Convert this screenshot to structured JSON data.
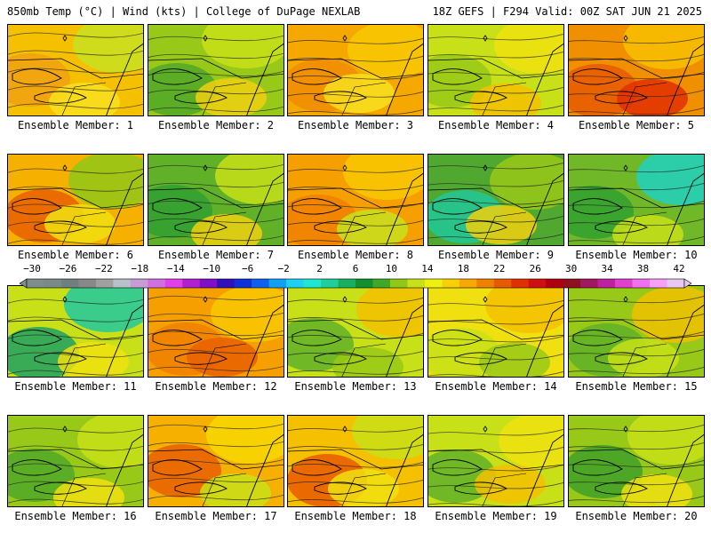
{
  "header": {
    "left": "850mb Temp (°C) | Wind (kts) | College of DuPage NEXLAB",
    "right": "18Z GEFS | F294 Valid: 00Z SAT JUN 21 2025"
  },
  "legend": {
    "labels": [
      "-30",
      "-26",
      "-22",
      "-18",
      "-14",
      "-10",
      "-6",
      "-2",
      "2",
      "6",
      "10",
      "14",
      "18",
      "22",
      "26",
      "30",
      "34",
      "38",
      "42"
    ],
    "colors": [
      "#7d8d89",
      "#7a8a86",
      "#708080",
      "#888888",
      "#a0a0a0",
      "#b8c0c8",
      "#c89ad8",
      "#d070e0",
      "#e040e8",
      "#b020d0",
      "#8010c8",
      "#3010b8",
      "#1030d8",
      "#1060f0",
      "#10a0f8",
      "#20d0f0",
      "#20e8d0",
      "#20d098",
      "#18b060",
      "#129030",
      "#40a828",
      "#90c818",
      "#c8e018",
      "#f0f010",
      "#f8d008",
      "#f8a800",
      "#f08000",
      "#e85a00",
      "#e03000",
      "#d01010",
      "#b00010",
      "#901020",
      "#a01860",
      "#c020a0",
      "#e040d0",
      "#f070f0",
      "#f8a0f8",
      "#e8c8f0"
    ]
  },
  "panels": [
    {
      "label": "Ensemble Member: 1",
      "base": "#f5c000",
      "blobs": [
        "#f0a010",
        "#c8e020",
        "#f8e020"
      ]
    },
    {
      "label": "Ensemble Member: 2",
      "base": "#98c818",
      "blobs": [
        "#50a828",
        "#c8e018",
        "#f0d010"
      ]
    },
    {
      "label": "Ensemble Member: 3",
      "base": "#f5a800",
      "blobs": [
        "#f08c00",
        "#f8c800",
        "#f8e020"
      ]
    },
    {
      "label": "Ensemble Member: 4",
      "base": "#c8e018",
      "blobs": [
        "#98c818",
        "#f0e010",
        "#f5c000"
      ]
    },
    {
      "label": "Ensemble Member: 5",
      "base": "#f09000",
      "blobs": [
        "#e85a00",
        "#f8c000",
        "#e03000"
      ]
    },
    {
      "label": "Ensemble Member: 6",
      "base": "#f5b000",
      "blobs": [
        "#e86000",
        "#90c818",
        "#f0e010"
      ]
    },
    {
      "label": "Ensemble Member: 7",
      "base": "#60b028",
      "blobs": [
        "#30a030",
        "#c8e018",
        "#f0d010"
      ]
    },
    {
      "label": "Ensemble Member: 8",
      "base": "#f5a000",
      "blobs": [
        "#f08000",
        "#f8c800",
        "#c8e020"
      ]
    },
    {
      "label": "Ensemble Member: 9",
      "base": "#50a830",
      "blobs": [
        "#20c898",
        "#98c818",
        "#f0d010"
      ]
    },
    {
      "label": "Ensemble Member: 10",
      "base": "#70b828",
      "blobs": [
        "#30a030",
        "#20d0c0",
        "#c8e018"
      ]
    },
    {
      "label": "Ensemble Member: 11",
      "base": "#c8e018",
      "blobs": [
        "#20a060",
        "#20c8a0",
        "#f0e010"
      ]
    },
    {
      "label": "Ensemble Member: 12",
      "base": "#f5a000",
      "blobs": [
        "#f08000",
        "#f8c800",
        "#e86000"
      ]
    },
    {
      "label": "Ensemble Member: 13",
      "base": "#c8e018",
      "blobs": [
        "#60b028",
        "#f5c000",
        "#98c818"
      ]
    },
    {
      "label": "Ensemble Member: 14",
      "base": "#f0e010",
      "blobs": [
        "#c8e018",
        "#f5c000",
        "#98c818"
      ]
    },
    {
      "label": "Ensemble Member: 15",
      "base": "#98c818",
      "blobs": [
        "#60b028",
        "#f0c000",
        "#c8e018"
      ]
    },
    {
      "label": "Ensemble Member: 16",
      "base": "#98c818",
      "blobs": [
        "#50a828",
        "#c8e018",
        "#f0e010"
      ]
    },
    {
      "label": "Ensemble Member: 17",
      "base": "#f5b000",
      "blobs": [
        "#e86000",
        "#f8d800",
        "#c8e018"
      ]
    },
    {
      "label": "Ensemble Member: 18",
      "base": "#f5c000",
      "blobs": [
        "#e85a00",
        "#c8e018",
        "#f0e010"
      ]
    },
    {
      "label": "Ensemble Member: 19",
      "base": "#c8e018",
      "blobs": [
        "#60b028",
        "#f0e010",
        "#f5c000"
      ]
    },
    {
      "label": "Ensemble Member: 20",
      "base": "#98c818",
      "blobs": [
        "#40a028",
        "#c8e018",
        "#f0e010"
      ]
    }
  ]
}
